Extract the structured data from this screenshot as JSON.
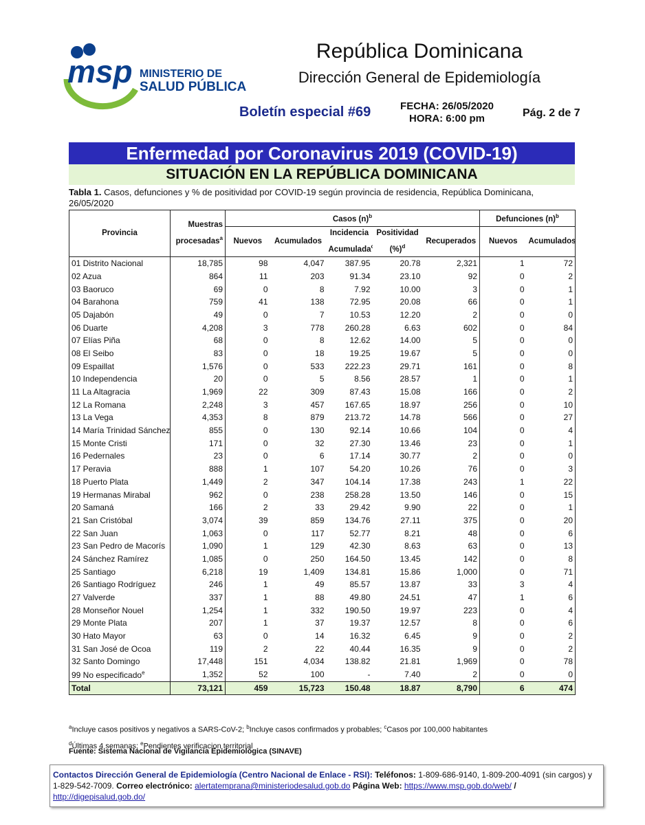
{
  "header": {
    "logo_text": "msp",
    "org_line1": "MINISTERIO DE",
    "org_line2": "SALUD PÚBLICA",
    "country": "República Dominicana",
    "directorate": "Dirección General de Epidemiología",
    "bulletin": "Boletín especial #69",
    "date": "FECHA: 26/05/2020",
    "time": "HORA: 6:00 pm",
    "page": "Pág. 2 de 7"
  },
  "banner": {
    "title": "Enfermedad por Coronavirus 2019 (COVID-19)",
    "subtitle": "SITUACIÓN EN LA REPÚBLICA DOMINICANA"
  },
  "caption": {
    "label": "Tabla 1.",
    "text": " Casos, defunciones y % de positividad por COVID-19 según provincia de residencia, República Dominicana, 26/05/2020"
  },
  "table": {
    "headers": {
      "provincia": "Provincia",
      "muestras": {
        "text": "Muestras procesadas",
        "sup": "a"
      },
      "casos": {
        "text": "Casos (n)",
        "sup": "b"
      },
      "defunciones": {
        "text": "Defunciones (n)",
        "sup": "b"
      },
      "nuevos": "Nuevos",
      "acumulados": "Acumulados",
      "incidencia": {
        "text": "Incidencia Acumulada",
        "sup": "c"
      },
      "positividad": {
        "text": "Positividad (%)",
        "sup": "d"
      },
      "recuperados": "Recuperados",
      "def_nuevos": "Nuevos",
      "def_acumulados": "Acumulados"
    },
    "rows": [
      [
        "01 Distrito Nacional",
        "18,785",
        "98",
        "4,047",
        "387.95",
        "20.78",
        "2,321",
        "1",
        "72"
      ],
      [
        "02 Azua",
        "864",
        "11",
        "203",
        "91.34",
        "23.10",
        "92",
        "0",
        "2"
      ],
      [
        "03 Baoruco",
        "69",
        "0",
        "8",
        "7.92",
        "10.00",
        "3",
        "0",
        "1"
      ],
      [
        "04 Barahona",
        "759",
        "41",
        "138",
        "72.95",
        "20.08",
        "66",
        "0",
        "1"
      ],
      [
        "05 Dajabón",
        "49",
        "0",
        "7",
        "10.53",
        "12.20",
        "2",
        "0",
        "0"
      ],
      [
        "06 Duarte",
        "4,208",
        "3",
        "778",
        "260.28",
        "6.63",
        "602",
        "0",
        "84"
      ],
      [
        "07 Elías Piña",
        "68",
        "0",
        "8",
        "12.62",
        "14.00",
        "5",
        "0",
        "0"
      ],
      [
        "08 El Seibo",
        "83",
        "0",
        "18",
        "19.25",
        "19.67",
        "5",
        "0",
        "0"
      ],
      [
        "09 Espaillat",
        "1,576",
        "0",
        "533",
        "222.23",
        "29.71",
        "161",
        "0",
        "8"
      ],
      [
        "10 Independencia",
        "20",
        "0",
        "5",
        "8.56",
        "28.57",
        "1",
        "0",
        "1"
      ],
      [
        "11 La Altagracia",
        "1,969",
        "22",
        "309",
        "87.43",
        "15.08",
        "166",
        "0",
        "2"
      ],
      [
        "12 La Romana",
        "2,248",
        "3",
        "457",
        "167.65",
        "18.97",
        "256",
        "0",
        "10"
      ],
      [
        "13 La Vega",
        "4,353",
        "8",
        "879",
        "213.72",
        "14.78",
        "566",
        "0",
        "27"
      ],
      [
        "14 María Trinidad Sánchez",
        "855",
        "0",
        "130",
        "92.14",
        "10.66",
        "104",
        "0",
        "4"
      ],
      [
        "15 Monte Cristi",
        "171",
        "0",
        "32",
        "27.30",
        "13.46",
        "23",
        "0",
        "1"
      ],
      [
        "16 Pedernales",
        "23",
        "0",
        "6",
        "17.14",
        "30.77",
        "2",
        "0",
        "0"
      ],
      [
        "17 Peravia",
        "888",
        "1",
        "107",
        "54.20",
        "10.26",
        "76",
        "0",
        "3"
      ],
      [
        "18 Puerto Plata",
        "1,449",
        "2",
        "347",
        "104.14",
        "17.38",
        "243",
        "1",
        "22"
      ],
      [
        "19 Hermanas Mirabal",
        "962",
        "0",
        "238",
        "258.28",
        "13.50",
        "146",
        "0",
        "15"
      ],
      [
        "20 Samaná",
        "166",
        "2",
        "33",
        "29.42",
        "9.90",
        "22",
        "0",
        "1"
      ],
      [
        "21 San Cristóbal",
        "3,074",
        "39",
        "859",
        "134.76",
        "27.11",
        "375",
        "0",
        "20"
      ],
      [
        "22 San Juan",
        "1,063",
        "0",
        "117",
        "52.77",
        "8.21",
        "48",
        "0",
        "6"
      ],
      [
        "23 San Pedro de Macorís",
        "1,090",
        "1",
        "129",
        "42.30",
        "8.63",
        "63",
        "0",
        "13"
      ],
      [
        "24 Sánchez Ramírez",
        "1,085",
        "0",
        "250",
        "164.50",
        "13.45",
        "142",
        "0",
        "8"
      ],
      [
        "25 Santiago",
        "6,218",
        "19",
        "1,409",
        "134.81",
        "15.86",
        "1,000",
        "0",
        "71"
      ],
      [
        "26 Santiago Rodríguez",
        "246",
        "1",
        "49",
        "85.57",
        "13.87",
        "33",
        "3",
        "4"
      ],
      [
        "27 Valverde",
        "337",
        "1",
        "88",
        "49.80",
        "24.51",
        "47",
        "1",
        "6"
      ],
      [
        "28 Monseñor Nouel",
        "1,254",
        "1",
        "332",
        "190.50",
        "19.97",
        "223",
        "0",
        "4"
      ],
      [
        "29 Monte Plata",
        "207",
        "1",
        "37",
        "19.37",
        "12.57",
        "8",
        "0",
        "6"
      ],
      [
        "30 Hato Mayor",
        "63",
        "0",
        "14",
        "16.32",
        "6.45",
        "9",
        "0",
        "2"
      ],
      [
        "31 San José de Ocoa",
        "119",
        "2",
        "22",
        "40.44",
        "16.35",
        "9",
        "0",
        "2"
      ],
      [
        "32 Santo Domingo",
        "17,448",
        "151",
        "4,034",
        "138.82",
        "21.81",
        "1,969",
        "0",
        "78"
      ],
      [
        {
          "text": "99 No especificado",
          "sup": "e"
        },
        "1,352",
        "52",
        "100",
        "-",
        "7.40",
        "2",
        "0",
        "0"
      ]
    ],
    "total": [
      "Total",
      "73,121",
      "459",
      "15,723",
      "150.48",
      "18.87",
      "8,790",
      "6",
      "474"
    ]
  },
  "footnotes": [
    [
      {
        "mark": "a",
        "text": "Incluye casos positivos y negativos a SARS-CoV-2;"
      },
      {
        "mark": "b",
        "text": "Incluye casos confirmados y probables;"
      },
      {
        "mark": "c",
        "text": "Casos por 100,000 habitantes"
      }
    ],
    [
      {
        "mark": "d",
        "text": "Últimas 4 semanas;"
      },
      {
        "mark": "e",
        "text": "Pendientes verificacion territorial"
      }
    ]
  ],
  "source": "Fuente: Sistema Nacional de Vigilancia Epidemiológica (SINAVE)",
  "contact": {
    "label": "Contactos Dirección General de Epidemiología (Centro Nacional de Enlace - RSI):",
    "phones_label": "Teléfonos:",
    "phones": "1-809-686-9140, 1-809-200-4091 (sin cargos) y 1-829-542-7009.",
    "email_label": "Correo electrónico:",
    "email": "alertatemprana@ministeriodesalud.gob.do",
    "web_label": "Página Web:",
    "web1": "https://www.msp.gob.do/web/",
    "separator": "/",
    "web2": "http://digepisalud.gob.do/"
  }
}
